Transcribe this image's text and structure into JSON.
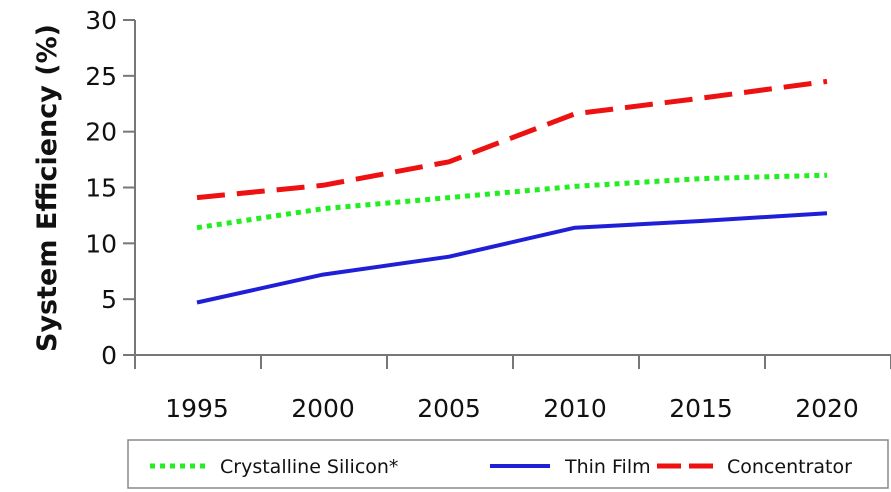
{
  "chart_data": {
    "type": "line",
    "title": "",
    "xlabel": "",
    "ylabel": "System Efficiency (%)",
    "xlim": [
      1990,
      2020
    ],
    "ylim": [
      0,
      30
    ],
    "x_ticks": [
      1995,
      2000,
      2005,
      2010,
      2015,
      2020
    ],
    "y_ticks": [
      0,
      5,
      10,
      15,
      20,
      25,
      30
    ],
    "grid": false,
    "legend_position": "bottom",
    "x": [
      1995,
      2000,
      2005,
      2010,
      2015,
      2020
    ],
    "series": [
      {
        "name": "Crystalline Silicon*",
        "color": "#22ee22",
        "dash": "dotted",
        "values": [
          11.4,
          13.1,
          14.1,
          15.1,
          15.8,
          16.1
        ]
      },
      {
        "name": "Thin Film",
        "color": "#1f1fd8",
        "dash": "solid",
        "values": [
          4.7,
          7.2,
          8.8,
          11.4,
          12.0,
          12.7
        ]
      },
      {
        "name": "Concentrator",
        "color": "#ee1111",
        "dash": "dashed",
        "values": [
          14.1,
          15.2,
          17.3,
          21.6,
          23.0,
          24.5
        ]
      }
    ]
  }
}
